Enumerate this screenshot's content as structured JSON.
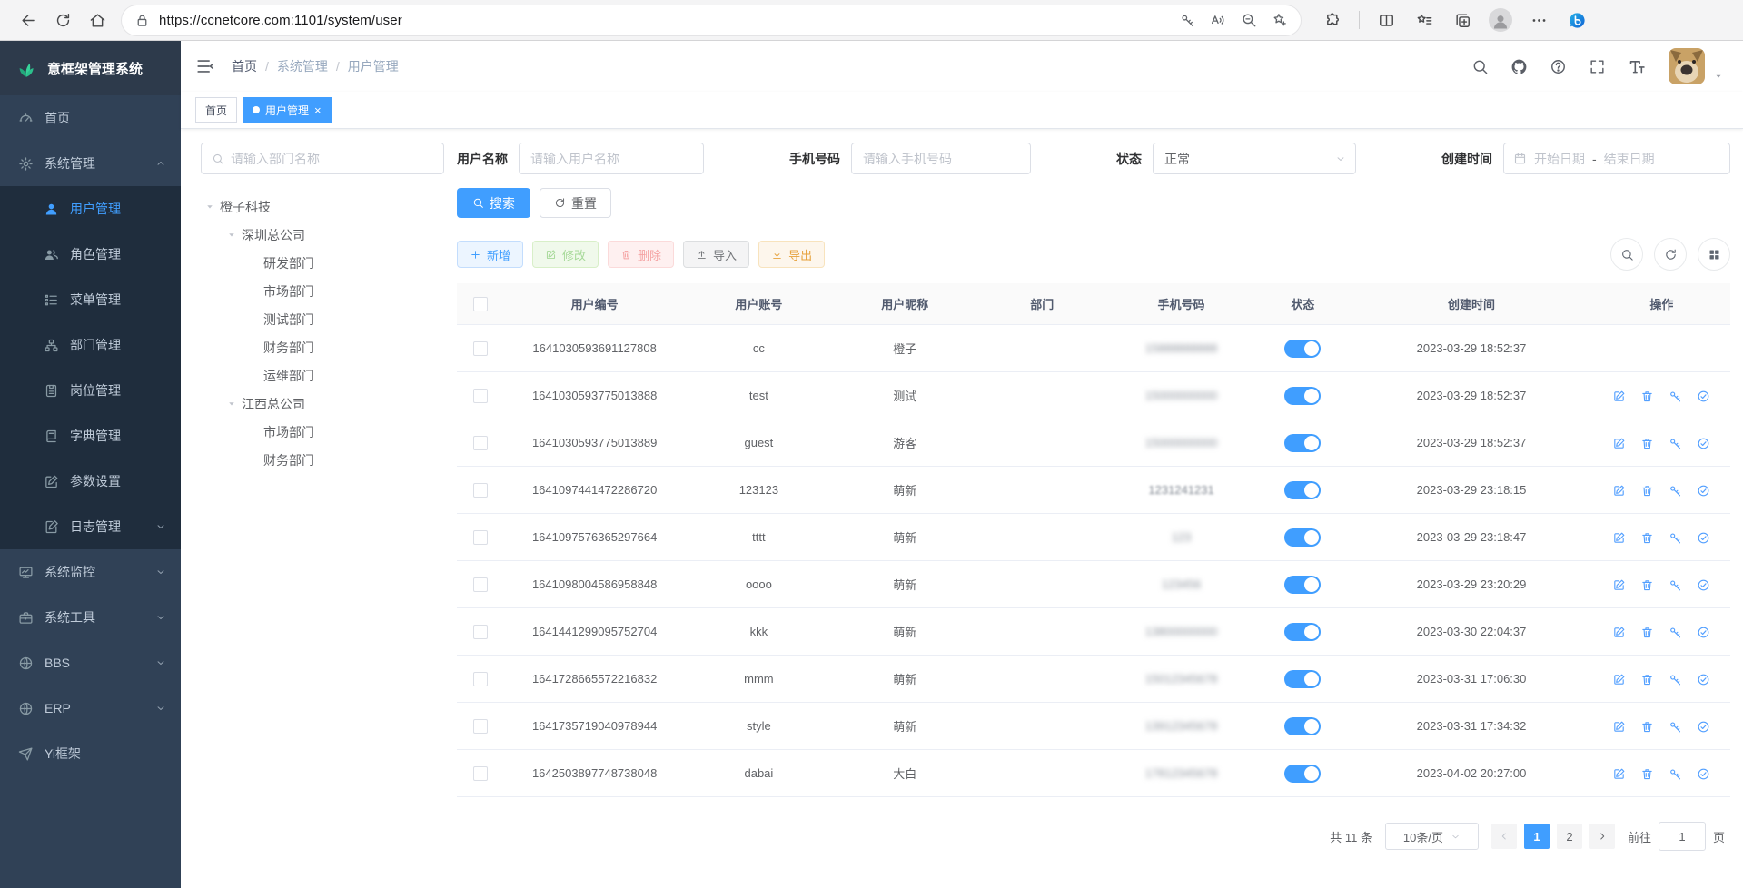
{
  "browser": {
    "url": "https://ccnetcore.com:1101/system/user"
  },
  "sidebar": {
    "title": "意框架管理系统",
    "items": [
      {
        "key": "home",
        "icon": "dashboard",
        "label": "首页"
      },
      {
        "key": "system",
        "icon": "gear",
        "label": "系统管理",
        "arrow": "up",
        "open": true,
        "children": [
          {
            "key": "user",
            "icon": "user",
            "label": "用户管理",
            "active": true
          },
          {
            "key": "role",
            "icon": "users",
            "label": "角色管理"
          },
          {
            "key": "menu",
            "icon": "menu-tree",
            "label": "菜单管理"
          },
          {
            "key": "dept",
            "icon": "dept-tree",
            "label": "部门管理"
          },
          {
            "key": "post",
            "icon": "post",
            "label": "岗位管理"
          },
          {
            "key": "dict",
            "icon": "dict",
            "label": "字典管理"
          },
          {
            "key": "param",
            "icon": "param",
            "label": "参数设置"
          },
          {
            "key": "log",
            "icon": "log",
            "label": "日志管理",
            "arrow": "down"
          }
        ]
      },
      {
        "key": "monitor",
        "icon": "monitor",
        "label": "系统监控",
        "arrow": "down"
      },
      {
        "key": "tools",
        "icon": "tools",
        "label": "系统工具",
        "arrow": "down"
      },
      {
        "key": "bbs",
        "icon": "globe",
        "label": "BBS",
        "arrow": "down"
      },
      {
        "key": "erp",
        "icon": "globe",
        "label": "ERP",
        "arrow": "down"
      },
      {
        "key": "yiframe",
        "icon": "plane",
        "label": "Yi框架"
      }
    ]
  },
  "breadcrumb": {
    "items": [
      "首页",
      "系统管理",
      "用户管理"
    ],
    "separator": "/"
  },
  "tabs": [
    {
      "key": "home",
      "label": "首页",
      "active": false,
      "closable": false
    },
    {
      "key": "user",
      "label": "用户管理",
      "active": true,
      "closable": true
    }
  ],
  "dept_panel": {
    "search_placeholder": "请输入部门名称",
    "tree": [
      {
        "label": "橙子科技",
        "level": 0,
        "caret": true
      },
      {
        "label": "深圳总公司",
        "level": 1,
        "caret": true
      },
      {
        "label": "研发部门",
        "level": 2,
        "caret": false
      },
      {
        "label": "市场部门",
        "level": 2,
        "caret": false
      },
      {
        "label": "测试部门",
        "level": 2,
        "caret": false
      },
      {
        "label": "财务部门",
        "level": 2,
        "caret": false
      },
      {
        "label": "运维部门",
        "level": 2,
        "caret": false
      },
      {
        "label": "江西总公司",
        "level": 1,
        "caret": true
      },
      {
        "label": "市场部门",
        "level": 2,
        "caret": false
      },
      {
        "label": "财务部门",
        "level": 2,
        "caret": false
      }
    ]
  },
  "filters": {
    "username_label": "用户名称",
    "username_placeholder": "请输入用户名称",
    "phone_label": "手机号码",
    "phone_placeholder": "请输入手机号码",
    "status_label": "状态",
    "status_value": "正常",
    "created_label": "创建时间",
    "date_start_placeholder": "开始日期",
    "date_separator": "-",
    "date_end_placeholder": "结束日期"
  },
  "actions": {
    "search": "搜索",
    "reset": "重置",
    "add": "新增",
    "edit": "修改",
    "delete": "删除",
    "import": "导入",
    "export": "导出"
  },
  "table": {
    "columns": [
      "用户编号",
      "用户账号",
      "用户昵称",
      "部门",
      "手机号码",
      "状态",
      "创建时间",
      "操作"
    ],
    "rows": [
      {
        "id": "1641030593691127808",
        "account": "cc",
        "nickname": "橙子",
        "dept": "",
        "phone": "15888888888",
        "phone_mask": "m",
        "status": true,
        "created": "2023-03-29 18:52:37",
        "ops": false
      },
      {
        "id": "1641030593775013888",
        "account": "test",
        "nickname": "测试",
        "dept": "",
        "phone": "15000000000",
        "phone_mask": "m",
        "status": true,
        "created": "2023-03-29 18:52:37",
        "ops": true
      },
      {
        "id": "1641030593775013889",
        "account": "guest",
        "nickname": "游客",
        "dept": "",
        "phone": "15000000000",
        "phone_mask": "m",
        "status": true,
        "created": "2023-03-29 18:52:37",
        "ops": true
      },
      {
        "id": "1641097441472286720",
        "account": "123123",
        "nickname": "萌新",
        "dept": "",
        "phone": "1231241231",
        "phone_mask": "l",
        "status": true,
        "created": "2023-03-29 23:18:15",
        "ops": true
      },
      {
        "id": "1641097576365297664",
        "account": "tttt",
        "nickname": "萌新",
        "dept": "",
        "phone": "123",
        "phone_mask": "m",
        "status": true,
        "created": "2023-03-29 23:18:47",
        "ops": true
      },
      {
        "id": "1641098004586958848",
        "account": "oooo",
        "nickname": "萌新",
        "dept": "",
        "phone": "123456",
        "phone_mask": "m",
        "status": true,
        "created": "2023-03-29 23:20:29",
        "ops": true
      },
      {
        "id": "1641441299095752704",
        "account": "kkk",
        "nickname": "萌新",
        "dept": "",
        "phone": "13800000000",
        "phone_mask": "m",
        "status": true,
        "created": "2023-03-30 22:04:37",
        "ops": true
      },
      {
        "id": "1641728665572216832",
        "account": "mmm",
        "nickname": "萌新",
        "dept": "",
        "phone": "15012345678",
        "phone_mask": "m",
        "status": true,
        "created": "2023-03-31 17:06:30",
        "ops": true
      },
      {
        "id": "1641735719040978944",
        "account": "style",
        "nickname": "萌新",
        "dept": "",
        "phone": "13912345678",
        "phone_mask": "m",
        "status": true,
        "created": "2023-03-31 17:34:32",
        "ops": true
      },
      {
        "id": "1642503897748738048",
        "account": "dabai",
        "nickname": "大白",
        "dept": "",
        "phone": "17812345678",
        "phone_mask": "m",
        "status": true,
        "created": "2023-04-02 20:27:00",
        "ops": true
      }
    ]
  },
  "pagination": {
    "total": "共 11 条",
    "page_size": "10条/页",
    "pages": [
      "1",
      "2"
    ],
    "active_page": "1",
    "goto_label": "前往",
    "goto_value": "1",
    "unit_label": "页"
  },
  "colors": {
    "accent": "#409eff",
    "sidebar_bg": "#304156",
    "submenu_bg": "#1f2d3d",
    "success": "#67c23a",
    "danger": "#f56c6c",
    "warning": "#e6a23c"
  }
}
